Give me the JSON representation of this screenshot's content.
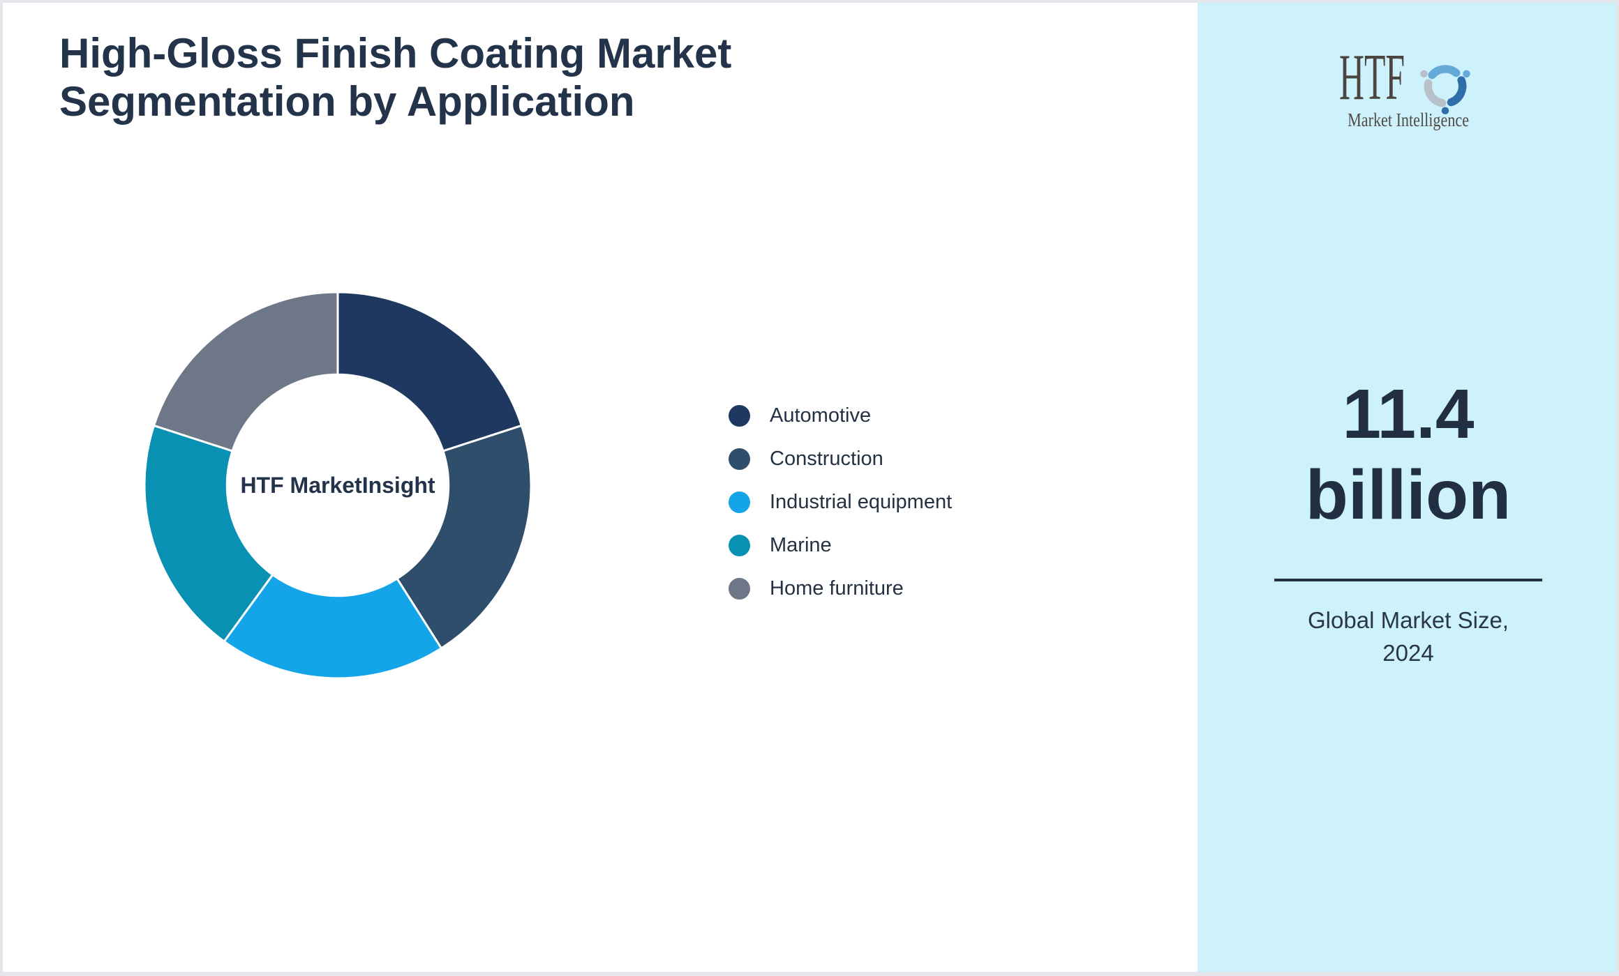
{
  "header": {
    "title_line1": "High-Gloss Finish Coating Market",
    "title_line2": "Segmentation by Application"
  },
  "chart_data": {
    "type": "pie",
    "variant": "donut",
    "title": "High-Gloss Finish Coating Market Segmentation by Application",
    "center_label_lines": [
      "HTF Market",
      "Insight"
    ],
    "categories": [
      "Automotive",
      "Construction",
      "Industrial equipment",
      "Marine",
      "Home furniture"
    ],
    "values": [
      20,
      21,
      19,
      20,
      20
    ],
    "unit": "% share (estimated from arc angles)",
    "colors": [
      "#1e3860",
      "#2f4e6b",
      "#14a5e9",
      "#0991b4",
      "#6d7787"
    ],
    "start_angle_deg": 0,
    "direction": "clockwise",
    "inner_radius_ratio": 0.573,
    "slice_border_color": "#ffffff",
    "legend_position": "right"
  },
  "sidebar": {
    "background_color": "#cef2fb",
    "logo": {
      "text": "HTF",
      "subtext": "Market Intelligence"
    },
    "market_size_value_line1": "11.4",
    "market_size_value_line2": "billion",
    "caption_line1": "Global Market Size,",
    "caption_line2": "2024"
  }
}
